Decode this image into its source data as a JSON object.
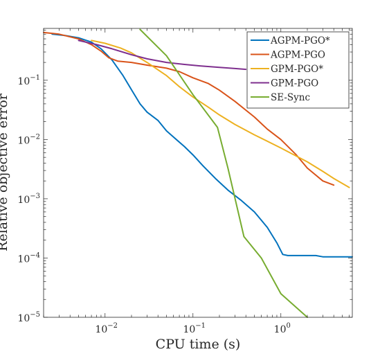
{
  "chart_data": {
    "type": "line",
    "xlabel": "CPU time (s)",
    "ylabel": "Relative objective error",
    "x_scale": "log",
    "y_scale": "log",
    "xlim": [
      0.002,
      6.5
    ],
    "ylim": [
      1e-05,
      0.75
    ],
    "grid": false,
    "legend_position": "top-right",
    "x_ticks": [
      {
        "value": 0.01,
        "base": "10",
        "exp": "−2"
      },
      {
        "value": 0.1,
        "base": "10",
        "exp": "−1"
      },
      {
        "value": 1,
        "base": "10",
        "exp": "0"
      }
    ],
    "y_ticks": [
      {
        "value": 1e-05,
        "base": "10",
        "exp": "−5"
      },
      {
        "value": 0.0001,
        "base": "10",
        "exp": "−4"
      },
      {
        "value": 0.001,
        "base": "10",
        "exp": "−3"
      },
      {
        "value": 0.01,
        "base": "10",
        "exp": "−2"
      },
      {
        "value": 0.1,
        "base": "10",
        "exp": "−1"
      }
    ],
    "series": [
      {
        "name": "AGPM-PGO*",
        "color": "#0072BD",
        "points": [
          [
            0.0025,
            0.6
          ],
          [
            0.0035,
            0.57
          ],
          [
            0.005,
            0.52
          ],
          [
            0.007,
            0.44
          ],
          [
            0.009,
            0.34
          ],
          [
            0.012,
            0.22
          ],
          [
            0.016,
            0.12
          ],
          [
            0.02,
            0.069
          ],
          [
            0.025,
            0.04
          ],
          [
            0.03,
            0.029
          ],
          [
            0.04,
            0.021
          ],
          [
            0.05,
            0.014
          ],
          [
            0.06,
            0.011
          ],
          [
            0.08,
            0.0076
          ],
          [
            0.1,
            0.0055
          ],
          [
            0.13,
            0.0036
          ],
          [
            0.18,
            0.0022
          ],
          [
            0.25,
            0.0014
          ],
          [
            0.35,
            0.00095
          ],
          [
            0.5,
            0.0006
          ],
          [
            0.7,
            0.00033
          ],
          [
            0.9,
            0.00018
          ],
          [
            1.05,
            0.000115
          ],
          [
            1.2,
            0.00011
          ],
          [
            2.5,
            0.00011
          ],
          [
            3.0,
            0.000105
          ],
          [
            6.5,
            0.000105
          ]
        ]
      },
      {
        "name": "AGPM-PGO",
        "color": "#D95319",
        "points": [
          [
            0.002,
            0.64
          ],
          [
            0.003,
            0.6
          ],
          [
            0.005,
            0.5
          ],
          [
            0.007,
            0.4
          ],
          [
            0.009,
            0.31
          ],
          [
            0.011,
            0.24
          ],
          [
            0.014,
            0.21
          ],
          [
            0.02,
            0.2
          ],
          [
            0.03,
            0.18
          ],
          [
            0.05,
            0.16
          ],
          [
            0.07,
            0.14
          ],
          [
            0.1,
            0.11
          ],
          [
            0.15,
            0.088
          ],
          [
            0.2,
            0.068
          ],
          [
            0.3,
            0.044
          ],
          [
            0.5,
            0.024
          ],
          [
            0.7,
            0.015
          ],
          [
            1.0,
            0.01
          ],
          [
            1.5,
            0.0055
          ],
          [
            2.0,
            0.0033
          ],
          [
            3.0,
            0.002
          ],
          [
            4.0,
            0.0017
          ]
        ]
      },
      {
        "name": "GPM-PGO*",
        "color": "#EDB120",
        "points": [
          [
            0.007,
            0.47
          ],
          [
            0.01,
            0.42
          ],
          [
            0.015,
            0.35
          ],
          [
            0.02,
            0.29
          ],
          [
            0.03,
            0.2
          ],
          [
            0.05,
            0.12
          ],
          [
            0.07,
            0.078
          ],
          [
            0.1,
            0.052
          ],
          [
            0.15,
            0.035
          ],
          [
            0.2,
            0.026
          ],
          [
            0.3,
            0.018
          ],
          [
            0.5,
            0.012
          ],
          [
            1.0,
            0.0072
          ],
          [
            2.0,
            0.0042
          ],
          [
            3.0,
            0.0029
          ],
          [
            4.0,
            0.0022
          ],
          [
            6.0,
            0.00155
          ]
        ]
      },
      {
        "name": "GPM-PGO",
        "color": "#7E2F8E",
        "points": [
          [
            0.005,
            0.47
          ],
          [
            0.008,
            0.4
          ],
          [
            0.012,
            0.34
          ],
          [
            0.02,
            0.27
          ],
          [
            0.03,
            0.23
          ],
          [
            0.05,
            0.2
          ],
          [
            0.08,
            0.185
          ],
          [
            0.12,
            0.175
          ],
          [
            0.2,
            0.165
          ],
          [
            0.3,
            0.158
          ],
          [
            0.4,
            0.153
          ]
        ]
      },
      {
        "name": "SE-Sync",
        "color": "#77AC30",
        "points": [
          [
            0.025,
            0.72
          ],
          [
            0.05,
            0.26
          ],
          [
            0.1,
            0.057
          ],
          [
            0.19,
            0.016
          ],
          [
            0.25,
            0.0033
          ],
          [
            0.38,
            0.00023
          ],
          [
            0.6,
            0.0001
          ],
          [
            1.0,
            2.5e-05
          ],
          [
            2.0,
            1e-05
          ]
        ]
      }
    ]
  }
}
